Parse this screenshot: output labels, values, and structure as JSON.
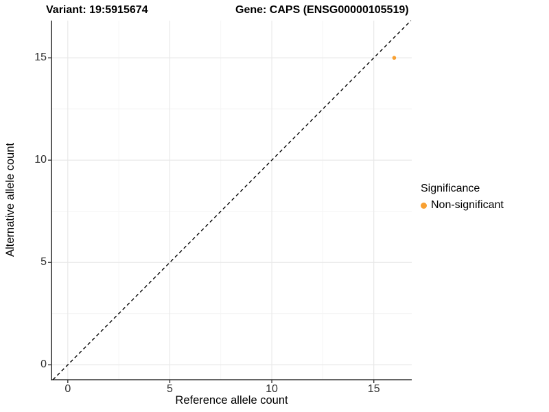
{
  "titles": {
    "left": "Variant: 19:5915674",
    "right": "Gene: CAPS (ENSG00000105519)"
  },
  "legend": {
    "title": "Significance",
    "items": [
      {
        "label": "Non-significant",
        "color": "#F8A032",
        "marker": "circle-icon"
      }
    ]
  },
  "colors": {
    "point_orange": "#F8A032",
    "grid_major": "#E8E8E8",
    "grid_minor": "#F4F4F4",
    "axis_line": "#333333",
    "tick_text": "#303030",
    "reference_line": "#000000"
  },
  "chart_data": {
    "type": "scatter",
    "title": "Variant: 19:5915674    Gene: CAPS (ENSG00000105519)",
    "xlabel": "Reference allele count",
    "ylabel": "Alternative allele count",
    "xlim": [
      -0.8,
      16.86
    ],
    "ylim": [
      -0.73,
      16.82
    ],
    "x_ticks": [
      0,
      5,
      10,
      15
    ],
    "y_ticks": [
      0,
      5,
      10,
      15
    ],
    "x_minor_ticks": [
      2.5,
      7.5,
      12.5
    ],
    "y_minor_ticks": [
      2.5,
      7.5,
      12.5
    ],
    "grid": true,
    "legend_position": "right",
    "series": [
      {
        "name": "Non-significant",
        "color": "#F8A032",
        "marker": "circle",
        "points": [
          {
            "x": 16,
            "y": 15
          }
        ]
      }
    ],
    "reference_line": {
      "kind": "identity y=x",
      "style": "dashed",
      "color": "#000000"
    }
  }
}
